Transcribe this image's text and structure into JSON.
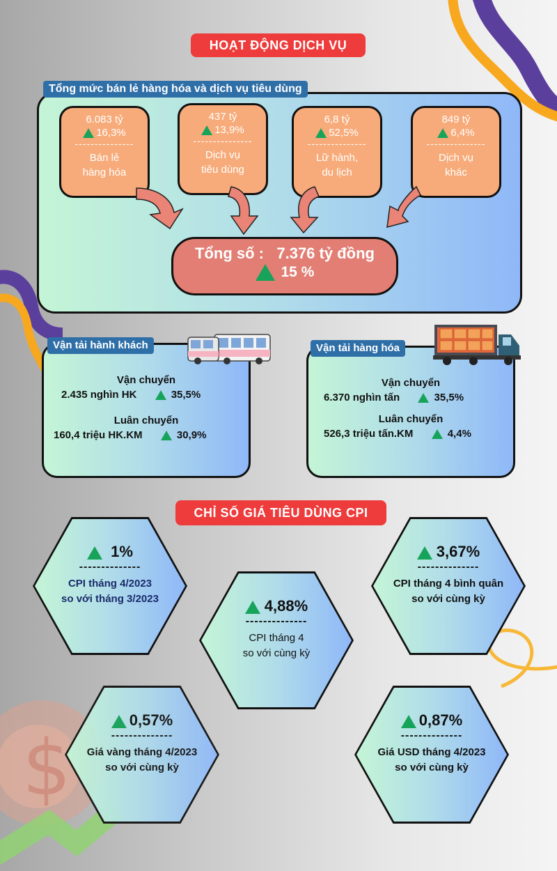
{
  "title_services": "HOẠT ĐỘNG DỊCH VỤ",
  "retail": {
    "tag": "Tổng mức bán lẻ hàng hóa và dịch vụ tiêu dùng",
    "cards": [
      {
        "value": "6.083 tỷ",
        "pct": "16,3%",
        "dash": "---------------",
        "line1": "Bán lẻ",
        "line2": "hàng hóa"
      },
      {
        "value": "437 tỷ",
        "pct": "13,9%",
        "dash": "---------------",
        "line1": "Dịch vụ",
        "line2": "tiêu dùng"
      },
      {
        "value": "6,8 tỷ",
        "pct": "52,5%",
        "dash": "---------------",
        "line1": "Lữ hành,",
        "line2": "du lịch"
      },
      {
        "value": "849 tỷ",
        "pct": "6,4%",
        "dash": "---------------",
        "line1": "Dịch vụ",
        "line2": "khác"
      }
    ],
    "total_label": "Tổng số :",
    "total_value": "7.376 tỷ đồng",
    "total_pct": "15 %"
  },
  "passenger": {
    "tag": "Vận tải hành khách",
    "h1": "Vận chuyển",
    "v1": "2.435 nghìn HK",
    "p1": "35,5%",
    "h2": "Luân chuyển",
    "v2": "160,4 triệu HK.KM",
    "p2": "30,9%"
  },
  "cargo": {
    "tag": "Vận tải hàng hóa",
    "h1": "Vận chuyển",
    "v1": "6.370 nghìn tấn",
    "p1": "35,5%",
    "h2": "Luân chuyển",
    "v2": "526,3 triệu tấn.KM",
    "p2": "4,4%"
  },
  "title_cpi": "CHỈ SỐ GIÁ TIÊU DÙNG CPI",
  "cpi": [
    {
      "value": "1%",
      "dash": "--------------",
      "line1": "CPI tháng 4/2023",
      "line2": "so với tháng 3/2023"
    },
    {
      "value": "4,88%",
      "dash": "--------------",
      "line1": "CPI tháng 4",
      "line2": "so với cùng kỳ"
    },
    {
      "value": "3,67%",
      "dash": "--------------",
      "line1": "CPI tháng 4 bình quân",
      "line2": "so với cùng kỳ"
    },
    {
      "value": "0,57%",
      "dash": "--------------",
      "line1": "Giá vàng tháng 4/2023",
      "line2": "so với cùng kỳ"
    },
    {
      "value": "0,87%",
      "dash": "--------------",
      "line1": "Giá USD tháng 4/2023",
      "line2": "so với cùng kỳ"
    }
  ],
  "colors": {
    "up_arrow": "#17a35a",
    "title_red": "#ee3b3b",
    "tag_blue": "#2f6fa8",
    "card_orange": "#f7ab7a",
    "total_salmon": "#e27e74"
  }
}
